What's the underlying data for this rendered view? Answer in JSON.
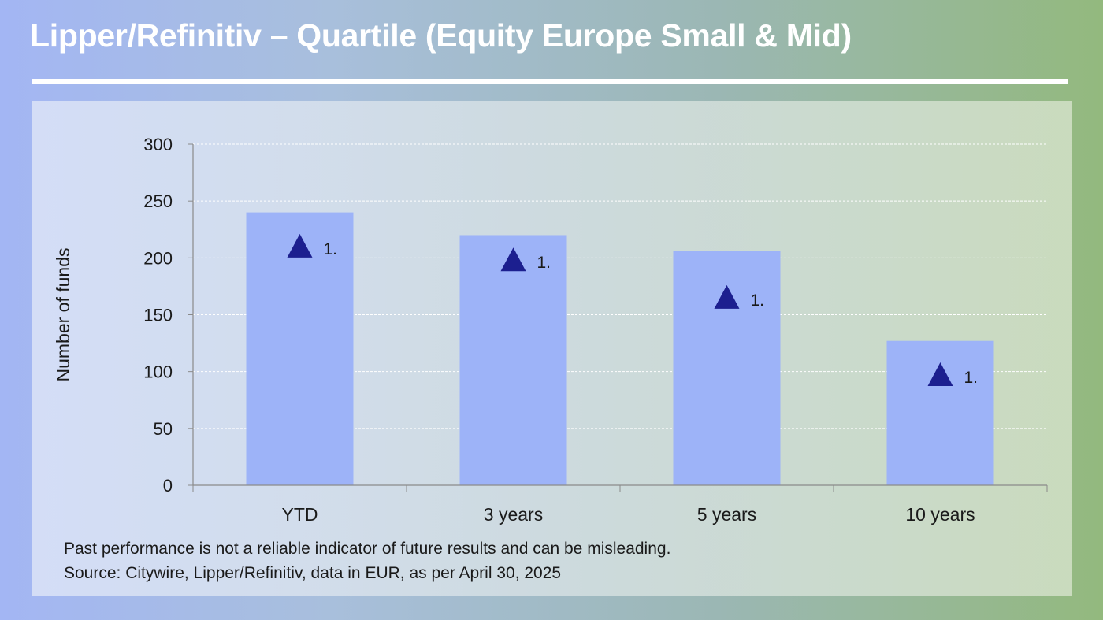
{
  "header": {
    "title": "Lipper/Refinitiv – Quartile (Equity Europe Small & Mid)"
  },
  "footnotes": {
    "disclaimer": "Past performance is not a reliable indicator of future results and can be misleading.",
    "source": "Source: Citywire, Lipper/Refinitiv, data in EUR, as per April 30, 2025"
  },
  "colors": {
    "bar": "#9db3f8",
    "marker": "#1c1f8f",
    "title": "#ffffff",
    "text": "#1a1a1a"
  },
  "chart_data": {
    "type": "bar",
    "categories": [
      "YTD",
      "3 years",
      "5 years",
      "10 years"
    ],
    "series": [
      {
        "values": [
          240,
          220,
          206,
          127
        ]
      },
      {
        "type": "marker",
        "marker": "triangle-up",
        "values": [
          210,
          198,
          165,
          97
        ],
        "labels": [
          "1.",
          "1.",
          "1.",
          "1."
        ]
      }
    ],
    "title": "",
    "xlabel": "",
    "ylabel": "Number of funds",
    "ylim": [
      0,
      300
    ],
    "yticks": [
      0,
      50,
      100,
      150,
      200,
      250,
      300
    ],
    "grid": true,
    "legend": "none"
  }
}
